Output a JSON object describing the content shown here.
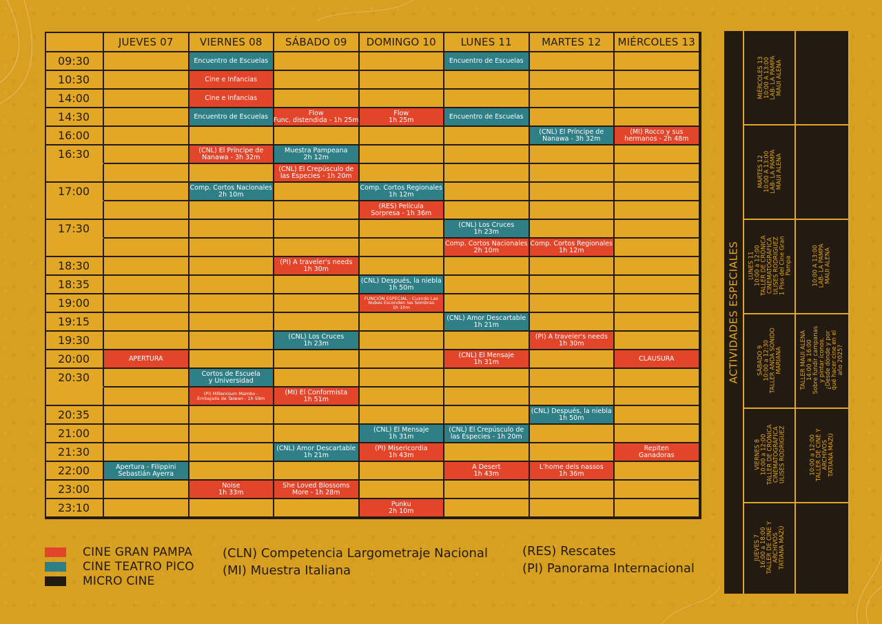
{
  "colors": {
    "background": "#d8a021",
    "cell": "#e2a825",
    "cine_gran_pampa": "#e2452a",
    "cine_teatro_pico": "#2f7f86",
    "micro_cine": "#231a12"
  },
  "schedule": {
    "days": [
      "JUEVES 07",
      "VIERNES 08",
      "SÁBADO 09",
      "DOMINGO 10",
      "LUNES 11",
      "MARTES 12",
      "MIÉRCOLES 13"
    ],
    "times": [
      "09:30",
      "10:30",
      "14:00",
      "14:30",
      "16:00",
      "16:30",
      "",
      "17:00",
      "",
      "17:30",
      "",
      "18:30",
      "18:35",
      "19:00",
      "19:15",
      "19:30",
      "20:00",
      "20:30",
      "",
      "20:35",
      "21:00",
      "21:30",
      "22:00",
      "23:00",
      "23:10"
    ],
    "events": [
      {
        "row": 0,
        "day": 1,
        "color": "teal",
        "lines": [
          "Encuentro de Escuelas"
        ]
      },
      {
        "row": 0,
        "day": 4,
        "color": "teal",
        "lines": [
          "Encuentro de Escuelas"
        ]
      },
      {
        "row": 1,
        "day": 1,
        "color": "red",
        "lines": [
          "Cine e Infancias"
        ]
      },
      {
        "row": 2,
        "day": 1,
        "color": "red",
        "lines": [
          "Cine e Infancias"
        ]
      },
      {
        "row": 3,
        "day": 1,
        "color": "teal",
        "lines": [
          "Encuentro de Escuelas"
        ]
      },
      {
        "row": 3,
        "day": 2,
        "color": "red",
        "lines": [
          "Flow",
          "Func. distendida - 1h 25m"
        ]
      },
      {
        "row": 3,
        "day": 3,
        "color": "red",
        "lines": [
          "Flow",
          "1h 25m"
        ]
      },
      {
        "row": 3,
        "day": 4,
        "color": "teal",
        "lines": [
          "Encuentro de Escuelas"
        ]
      },
      {
        "row": 4,
        "day": 5,
        "color": "teal",
        "lines": [
          "(CNL) El Príncipe de",
          "Nanawa - 3h 32m"
        ]
      },
      {
        "row": 4,
        "day": 6,
        "color": "red",
        "lines": [
          "(MI) Rocco y sus",
          "hermanos - 2h 48m"
        ]
      },
      {
        "row": 5,
        "day": 1,
        "color": "red",
        "lines": [
          "(CNL) El Príncipe de",
          "Nanawa - 3h 32m"
        ]
      },
      {
        "row": 5,
        "day": 2,
        "color": "teal",
        "lines": [
          "Muestra Pampeana",
          "2h 12m"
        ]
      },
      {
        "row": 6,
        "day": 2,
        "color": "red",
        "lines": [
          "(CNL) El Crepúsculo de",
          "las Especies - 1h 20m"
        ]
      },
      {
        "row": 7,
        "day": 1,
        "color": "teal",
        "lines": [
          "Comp. Cortos Nacionales",
          "2h 10m"
        ]
      },
      {
        "row": 7,
        "day": 3,
        "color": "teal",
        "lines": [
          "Comp. Cortos Regionales",
          "1h 12m"
        ]
      },
      {
        "row": 8,
        "day": 3,
        "color": "red",
        "lines": [
          "(RES) Película",
          "Sorpresa - 1h 36m"
        ]
      },
      {
        "row": 9,
        "day": 4,
        "color": "teal",
        "lines": [
          "(CNL) Los Cruces",
          "1h 23m"
        ]
      },
      {
        "row": 10,
        "day": 4,
        "color": "red",
        "lines": [
          "Comp. Cortos Nacionales",
          "2h 10m"
        ]
      },
      {
        "row": 10,
        "day": 5,
        "color": "red",
        "lines": [
          "Comp. Cortos Regionales",
          "1h 12m"
        ]
      },
      {
        "row": 11,
        "day": 2,
        "color": "red",
        "lines": [
          "(PI) A traveler's needs",
          "1h 30m"
        ]
      },
      {
        "row": 12,
        "day": 3,
        "color": "teal",
        "lines": [
          "(CNL) Después, la niebla",
          "1h 50m"
        ]
      },
      {
        "row": 13,
        "day": 3,
        "color": "red",
        "tiny": true,
        "lines": [
          "FUNCIÓN ESPECIAL - Cuando Las",
          "Nubes Esconden las Sombras",
          "1h 10m"
        ]
      },
      {
        "row": 14,
        "day": 4,
        "color": "teal",
        "lines": [
          "(CNL) Amor Descartable",
          "1h 21m"
        ]
      },
      {
        "row": 15,
        "day": 2,
        "color": "teal",
        "lines": [
          "(CNL) Los Cruces",
          "1h 23m"
        ]
      },
      {
        "row": 15,
        "day": 5,
        "color": "red",
        "lines": [
          "(PI) A traveler's needs",
          "1h 30m"
        ]
      },
      {
        "row": 16,
        "day": 0,
        "color": "red",
        "lines": [
          "APERTURA"
        ]
      },
      {
        "row": 16,
        "day": 4,
        "color": "red",
        "lines": [
          "(CNL) El Mensaje",
          "1h 31m"
        ]
      },
      {
        "row": 16,
        "day": 6,
        "color": "red",
        "lines": [
          "CLAUSURA"
        ]
      },
      {
        "row": 17,
        "day": 1,
        "color": "teal",
        "lines": [
          "Cortos de Escuela",
          "y Universidad"
        ]
      },
      {
        "row": 18,
        "day": 1,
        "color": "red",
        "tiny": true,
        "lines": [
          "(PI) Millennium Mambo -",
          "Embajada de Taiwan - 1h 59m"
        ]
      },
      {
        "row": 18,
        "day": 2,
        "color": "red",
        "lines": [
          "(MI) El Conformista",
          "1h 51m"
        ]
      },
      {
        "row": 19,
        "day": 5,
        "color": "teal",
        "lines": [
          "(CNL) Después, la niebla",
          "1h 50m"
        ]
      },
      {
        "row": 20,
        "day": 3,
        "color": "teal",
        "lines": [
          "(CNL) El Mensaje",
          "1h 31m"
        ]
      },
      {
        "row": 20,
        "day": 4,
        "color": "teal",
        "lines": [
          "(CNL) El Crepúsculo de",
          "las Especies - 1h 20m"
        ]
      },
      {
        "row": 21,
        "day": 2,
        "color": "teal",
        "lines": [
          "(CNL) Amor Descartable",
          "1h 21m"
        ]
      },
      {
        "row": 21,
        "day": 3,
        "color": "red",
        "lines": [
          "(PI) Misericordia",
          "1h 43m"
        ]
      },
      {
        "row": 21,
        "day": 6,
        "color": "red",
        "lines": [
          "Repiten",
          "Ganadoras"
        ]
      },
      {
        "row": 22,
        "day": 0,
        "color": "teal",
        "lines": [
          "Apertura - Filippini",
          "Sebastián Ayerra"
        ]
      },
      {
        "row": 22,
        "day": 4,
        "color": "red",
        "lines": [
          "A Desert",
          "1h 43m"
        ]
      },
      {
        "row": 22,
        "day": 5,
        "color": "red",
        "lines": [
          "L'home dels nassos",
          "1h 36m"
        ]
      },
      {
        "row": 23,
        "day": 1,
        "color": "red",
        "lines": [
          "Noise",
          "1h 33m"
        ]
      },
      {
        "row": 23,
        "day": 2,
        "color": "red",
        "lines": [
          "She Loved Blossoms",
          "More - 1h 28m"
        ]
      },
      {
        "row": 24,
        "day": 3,
        "color": "red",
        "lines": [
          "Punku",
          "2h 10m"
        ]
      }
    ]
  },
  "legend": [
    {
      "label": "CINE GRAN PAMPA",
      "color": "#e2452a"
    },
    {
      "label": "CINE TEATRO PICO",
      "color": "#2f7f86"
    },
    {
      "label": "MICRO CINE",
      "color": "#231a12"
    }
  ],
  "abbreviations": {
    "col1": [
      "(CLN) Competencia Largometraje Nacional",
      "(MI) Muestra Italiana"
    ],
    "col2": [
      "(RES) Rescates",
      "(PI) Panorama Internacional"
    ]
  },
  "special": {
    "title": "ACTIVIDADES ESPECIALES",
    "col1": [
      [
        "MIÉRCOLES 13",
        "10:00 A 13:00",
        "LAB- LA PAMPA",
        "MAUI ALENA"
      ],
      [
        "MARTES 12",
        "10:00 A 13:00",
        "LAB- LA PAMPA",
        "MAUI ALENA"
      ],
      [
        "LUNES 11",
        "10:00 a 12:00",
        "TALLER DE CRÓNICA",
        "CINEMATOGRÁFICA",
        "ULISES RODRIGUEZ",
        "1 Piso del Cine Gran",
        "Pampa"
      ],
      [
        "SÁBADO 9",
        "10:00 a 12:30",
        "TALLER ANDA SONIDO",
        "MARIANA"
      ],
      [
        "VIERNES 8",
        "10:00 a 12:00",
        "TALLER DE CRÓNICA",
        "CINEMATOGRÁFICA",
        "ULISES RODRIGUEZ"
      ],
      [
        "JUEVES 7",
        "16:00 a 18:00",
        "TALLER DE CINE Y",
        "ARCHIVOS",
        "TATIANA MAZÚ"
      ]
    ],
    "col2": [
      [],
      [],
      [
        "10:00 A 13:00",
        "LAB- LA PAMPA",
        "MAUI ALENA"
      ],
      [
        "TALLER MAUI ALENA",
        "14:00 a 16:00",
        "Sobre fundir campanas",
        "y pintar íconos.",
        "¿Desde dónde y por",
        "qué hacer cine en el",
        "año 2025?"
      ],
      [
        "10:00 a 12:00",
        "TALLER DE CINE Y",
        "ARCHIVOS",
        "TATIANA MAZÚ"
      ],
      []
    ]
  }
}
